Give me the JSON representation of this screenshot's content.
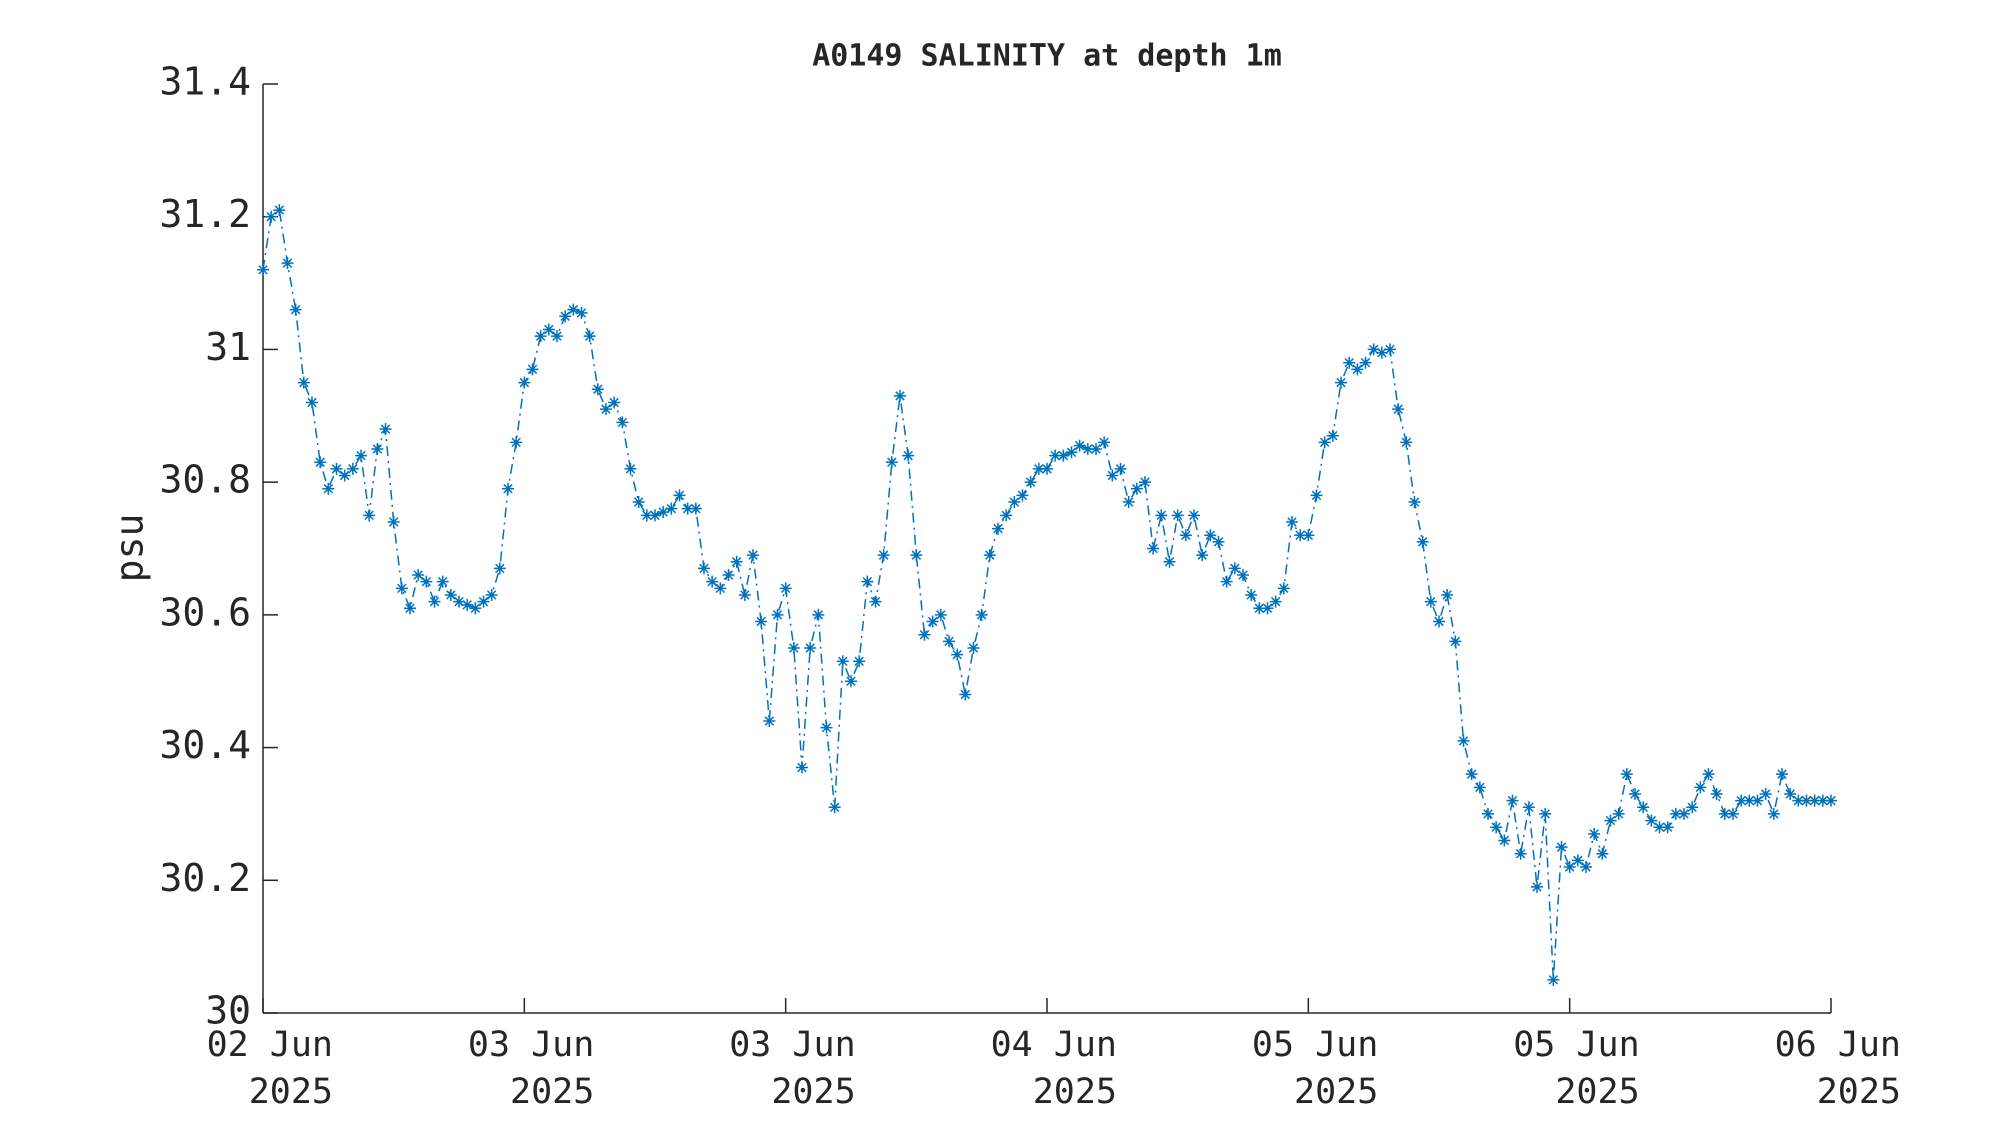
{
  "chart_data": {
    "type": "line",
    "title": "A0149 SALINITY at depth 1m",
    "ylabel": "psu",
    "x": [
      0,
      0.5,
      1,
      1.5,
      2,
      2.5,
      3,
      3.5,
      4,
      4.5,
      5,
      5.5,
      6,
      6.5,
      7,
      7.5,
      8,
      8.5,
      9,
      9.5,
      10,
      10.5,
      11,
      11.5,
      12,
      12.5,
      13,
      13.5,
      14,
      14.5,
      15,
      15.5,
      16,
      16.5,
      17,
      17.5,
      18,
      18.5,
      19,
      19.5,
      20,
      20.5,
      21,
      21.5,
      22,
      22.5,
      23,
      23.5,
      24,
      24.5,
      25,
      25.5,
      26,
      26.5,
      27,
      27.5,
      28,
      28.5,
      29,
      29.5,
      30,
      30.5,
      31,
      31.5,
      32,
      32.5,
      33,
      33.5,
      34,
      34.5,
      35,
      35.5,
      36,
      36.5,
      37,
      37.5,
      38,
      38.5,
      39,
      39.5,
      40,
      40.5,
      41,
      41.5,
      42,
      42.5,
      43,
      43.5,
      44,
      44.5,
      45,
      45.5,
      46,
      46.5,
      47,
      47.5,
      48,
      48.5,
      49,
      49.5,
      50,
      50.5,
      51,
      51.5,
      52,
      52.5,
      53,
      53.5,
      54,
      54.5,
      55,
      55.5,
      56,
      56.5,
      57,
      57.5,
      58,
      58.5,
      59,
      59.5,
      60,
      60.5,
      61,
      61.5,
      62,
      62.5,
      63,
      63.5,
      64,
      64.5,
      65,
      65.5,
      66,
      66.5,
      67,
      67.5,
      68,
      68.5,
      69,
      69.5,
      70,
      70.5,
      71,
      71.5,
      72,
      72.5,
      73,
      73.5,
      74,
      74.5,
      75,
      75.5,
      76,
      76.5,
      77,
      77.5,
      78,
      78.5,
      79,
      79.5,
      80,
      80.5,
      81,
      81.5,
      82,
      82.5,
      83,
      83.5,
      84,
      84.5,
      85,
      85.5,
      86,
      86.5,
      87,
      87.5,
      88,
      88.5,
      89,
      89.5,
      90,
      90.5,
      91,
      91.5,
      92,
      92.5,
      93,
      93.5,
      94,
      94.5,
      95,
      95.5,
      96
    ],
    "series": [
      {
        "color": "#0072bd",
        "values": [
          31.12,
          31.2,
          31.21,
          31.13,
          31.06,
          30.95,
          30.92,
          30.83,
          30.79,
          30.82,
          30.81,
          30.82,
          30.84,
          30.75,
          30.85,
          30.88,
          30.74,
          30.64,
          30.61,
          30.66,
          30.65,
          30.62,
          30.65,
          30.63,
          30.62,
          30.615,
          30.61,
          30.62,
          30.63,
          30.67,
          30.79,
          30.86,
          30.95,
          30.97,
          31.02,
          31.03,
          31.02,
          31.05,
          31.06,
          31.055,
          31.02,
          30.94,
          30.91,
          30.92,
          30.89,
          30.82,
          30.77,
          30.75,
          30.75,
          30.755,
          30.76,
          30.78,
          30.76,
          30.76,
          30.67,
          30.65,
          30.64,
          30.66,
          30.68,
          30.63,
          30.69,
          30.59,
          30.44,
          30.6,
          30.64,
          30.55,
          30.37,
          30.55,
          30.6,
          30.43,
          30.31,
          30.53,
          30.5,
          30.53,
          30.65,
          30.62,
          30.69,
          30.83,
          30.93,
          30.84,
          30.69,
          30.57,
          30.59,
          30.6,
          30.56,
          30.54,
          30.48,
          30.55,
          30.6,
          30.69,
          30.73,
          30.75,
          30.77,
          30.78,
          30.8,
          30.82,
          30.82,
          30.84,
          30.84,
          30.845,
          30.855,
          30.85,
          30.85,
          30.86,
          30.81,
          30.82,
          30.77,
          30.79,
          30.8,
          30.7,
          30.75,
          30.68,
          30.75,
          30.72,
          30.75,
          30.69,
          30.72,
          30.71,
          30.65,
          30.67,
          30.66,
          30.63,
          30.61,
          30.61,
          30.62,
          30.64,
          30.74,
          30.72,
          30.72,
          30.78,
          30.86,
          30.87,
          30.95,
          30.98,
          30.97,
          30.98,
          31.0,
          30.995,
          31.0,
          30.91,
          30.86,
          30.77,
          30.71,
          30.62,
          30.59,
          30.63,
          30.56,
          30.41,
          30.36,
          30.34,
          30.3,
          30.28,
          30.26,
          30.32,
          30.24,
          30.31,
          30.19,
          30.3,
          30.05,
          30.25,
          30.22,
          30.23,
          30.22,
          30.27,
          30.24,
          30.29,
          30.3,
          30.36,
          30.33,
          30.31,
          30.29,
          30.28,
          30.28,
          30.3,
          30.3,
          30.31,
          30.34,
          30.36,
          30.33,
          30.3,
          30.3,
          30.32,
          30.32,
          30.32,
          30.33,
          30.3,
          30.36,
          30.33,
          30.32,
          30.32,
          30.32,
          30.32,
          30.32
        ]
      }
    ],
    "xlim": [
      0,
      96
    ],
    "xticks": [
      {
        "value": 0,
        "label": "02 Jun\n2025"
      },
      {
        "value": 16,
        "label": "03 Jun\n2025"
      },
      {
        "value": 32,
        "label": "03 Jun\n2025"
      },
      {
        "value": 48,
        "label": "04 Jun\n2025"
      },
      {
        "value": 64,
        "label": "05 Jun\n2025"
      },
      {
        "value": 80,
        "label": "05 Jun\n2025"
      },
      {
        "value": 96,
        "label": "06 Jun\n2025"
      }
    ],
    "ylim": [
      30,
      31.4
    ],
    "yticks": [
      30,
      30.2,
      30.4,
      30.6,
      30.8,
      31,
      31.2,
      31.4
    ],
    "grid": false,
    "line_style": "dashdot",
    "marker": "asterisk"
  }
}
